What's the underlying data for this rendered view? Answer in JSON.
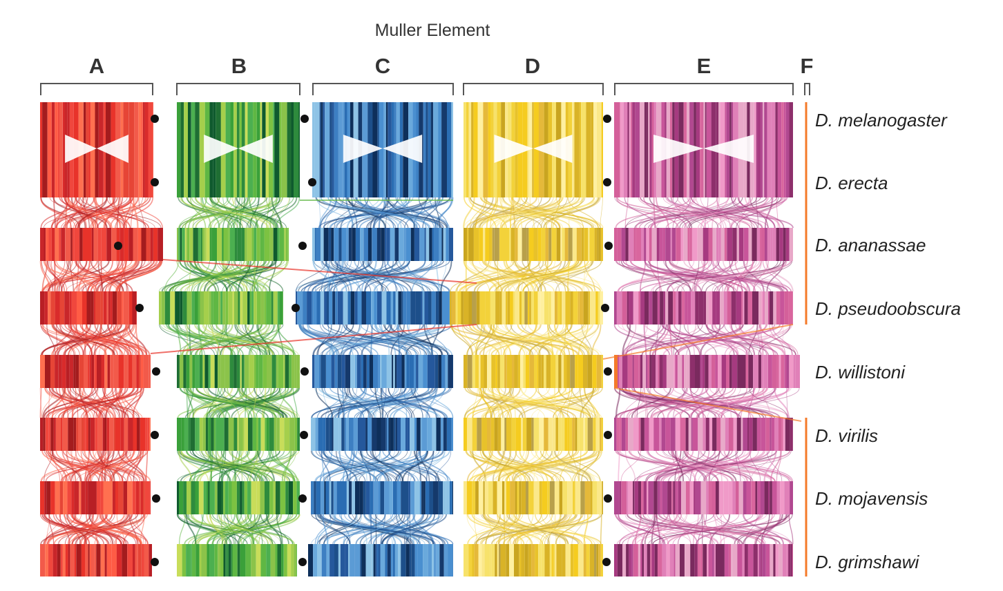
{
  "figure": {
    "title": "Muller Element",
    "elements": [
      {
        "label": "A",
        "palette": [
          "#e8332a",
          "#f0473d",
          "#d92b2b",
          "#f25a4a",
          "#c9262a",
          "#ff5c45",
          "#b81f25",
          "#e64536",
          "#a41c1e",
          "#ff7050"
        ]
      },
      {
        "label": "B",
        "palette": [
          "#3aa03a",
          "#7cc242",
          "#2e8b3d",
          "#a5cf4c",
          "#1f6e33",
          "#5fb744",
          "#c8dd5a",
          "#0f5a2e",
          "#8bc34a",
          "#4caf50"
        ]
      },
      {
        "label": "C",
        "palette": [
          "#2a6db3",
          "#4a8fd0",
          "#1d4f8a",
          "#6aa9dc",
          "#15396b",
          "#3d7fc2",
          "#8ec3e6",
          "#25589c",
          "#5b9bd5",
          "#0e2f5a"
        ]
      },
      {
        "label": "D",
        "palette": [
          "#f3d23a",
          "#e8c22a",
          "#f7e26b",
          "#d9b327",
          "#fbe88a",
          "#c9a520",
          "#f5cc1f",
          "#e5b93a",
          "#fff0a0",
          "#b8a04a"
        ]
      },
      {
        "label": "E",
        "palette": [
          "#c8559a",
          "#e080b8",
          "#a63a80",
          "#d9669e",
          "#8d2f6b",
          "#f09ac8",
          "#b14890",
          "#e8a8c8",
          "#7a2a5e",
          "#d4609a"
        ]
      },
      {
        "label": "F",
        "palette": [
          "#f47a2a",
          "#ff8c3a"
        ]
      }
    ],
    "species": [
      "D. melanogaster",
      "D. erecta",
      "D. ananassae",
      "D. pseudoobscura",
      "D. willistoni",
      "D. virilis",
      "D. mojavensis",
      "D. grimshawi"
    ],
    "element_F_color": "#f47a2a",
    "centromere_color": "#111111"
  }
}
